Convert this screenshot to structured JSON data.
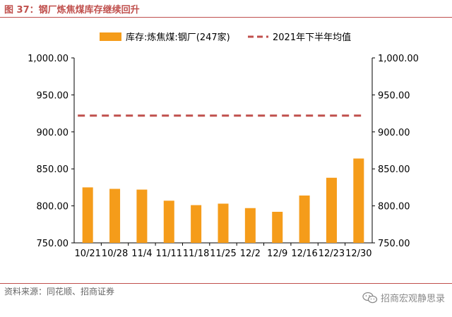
{
  "figure": {
    "title": "图 37：钢厂炼焦煤库存继续回升",
    "source": "资料来源：同花顺、招商证券",
    "watermark": "招商宏观静思录",
    "watermark_icon": "wechat-icon"
  },
  "chart_data": {
    "type": "bar",
    "categories": [
      "10/21",
      "10/28",
      "11/4",
      "11/11",
      "11/18",
      "11/25",
      "12/2",
      "12/9",
      "12/16",
      "12/23",
      "12/30"
    ],
    "series": [
      {
        "name": "库存:炼焦煤:钢厂(247家)",
        "type": "bar",
        "color": "#f59c1a",
        "values": [
          825,
          823,
          822,
          807,
          801,
          803,
          797,
          792,
          814,
          838,
          864
        ]
      },
      {
        "name": "2021年下半年均值",
        "type": "line",
        "style": "dashed",
        "color": "#c0504d",
        "values": [
          922,
          922,
          922,
          922,
          922,
          922,
          922,
          922,
          922,
          922,
          922
        ]
      }
    ],
    "ylim": [
      750,
      1000
    ],
    "yticks": [
      "1,000.00",
      "950.00",
      "900.00",
      "850.00",
      "800.00",
      "750.00"
    ],
    "ytick_values": [
      1000,
      950,
      900,
      850,
      800,
      750
    ],
    "secondary_yticks": [
      "1,000.00",
      "950.00",
      "900.00",
      "850.00",
      "800.00",
      "750.00"
    ],
    "grid": false,
    "legend_position": "top"
  }
}
